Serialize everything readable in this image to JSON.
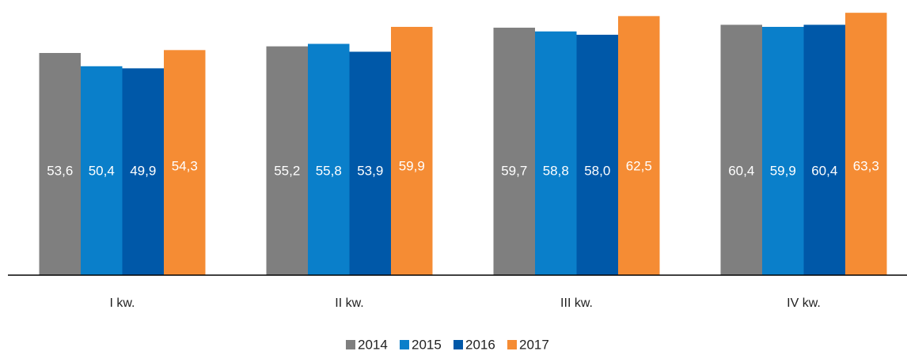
{
  "chart_data": {
    "type": "bar",
    "categories": [
      "I kw.",
      "II kw.",
      "III kw.",
      "IV kw."
    ],
    "series": [
      {
        "name": "2014",
        "color": "#7f7f7f",
        "values": [
          53.6,
          55.2,
          59.7,
          60.4
        ],
        "value_labels": [
          "53,6",
          "55,2",
          "59,7",
          "60,4"
        ]
      },
      {
        "name": "2015",
        "color": "#0a7fca",
        "values": [
          50.4,
          55.8,
          58.8,
          59.9
        ],
        "value_labels": [
          "50,4",
          "55,8",
          "58,8",
          "59,9"
        ]
      },
      {
        "name": "2016",
        "color": "#0058a8",
        "values": [
          49.9,
          53.9,
          58.0,
          60.4
        ],
        "value_labels": [
          "49,9",
          "53,9",
          "58,0",
          "60,4"
        ]
      },
      {
        "name": "2017",
        "color": "#f58c34",
        "values": [
          54.3,
          59.9,
          62.5,
          63.3
        ],
        "value_labels": [
          "54,3",
          "59,9",
          "62,5",
          "63,3"
        ]
      }
    ],
    "ylim": [
      0,
      66
    ],
    "legend": "bottom"
  }
}
